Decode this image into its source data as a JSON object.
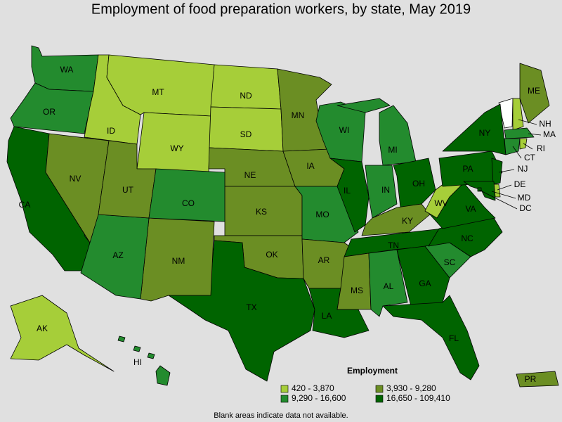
{
  "title": "Employment of food preparation workers, by state, May 2019",
  "legend": {
    "title": "Employment",
    "items": [
      {
        "label": "420 - 3,870",
        "color": "#a6ce39"
      },
      {
        "label": "3,930 - 9,280",
        "color": "#6b8e23"
      },
      {
        "label": "9,290 - 16,600",
        "color": "#238b2e"
      },
      {
        "label": "16,650 - 109,410",
        "color": "#006400"
      }
    ]
  },
  "states": [
    {
      "label": "WA",
      "level": 2
    },
    {
      "label": "OR",
      "level": 2
    },
    {
      "label": "CA",
      "level": 3
    },
    {
      "label": "ID",
      "level": 0
    },
    {
      "label": "MT",
      "level": 0
    },
    {
      "label": "WY",
      "level": 0
    },
    {
      "label": "ND",
      "level": 0
    },
    {
      "label": "SD",
      "level": 0
    },
    {
      "label": "NE",
      "level": 1
    },
    {
      "label": "KS",
      "level": 1
    },
    {
      "label": "OK",
      "level": 1
    },
    {
      "label": "TX",
      "level": 3
    },
    {
      "label": "NM",
      "level": 1
    },
    {
      "label": "AZ",
      "level": 2
    },
    {
      "label": "NV",
      "level": 1
    },
    {
      "label": "UT",
      "level": 1
    },
    {
      "label": "CO",
      "level": 2
    },
    {
      "label": "MN",
      "level": 1
    },
    {
      "label": "IA",
      "level": 1
    },
    {
      "label": "MO",
      "level": 2
    },
    {
      "label": "AR",
      "level": 1
    },
    {
      "label": "LA",
      "level": 3
    },
    {
      "label": "WI",
      "level": 2
    },
    {
      "label": "IL",
      "level": 3
    },
    {
      "label": "MI",
      "level": 2
    },
    {
      "label": "IN",
      "level": 2
    },
    {
      "label": "OH",
      "level": 3
    },
    {
      "label": "KY",
      "level": 1
    },
    {
      "label": "TN",
      "level": 3
    },
    {
      "label": "MS",
      "level": 1
    },
    {
      "label": "AL",
      "level": 2
    },
    {
      "label": "GA",
      "level": 3
    },
    {
      "label": "FL",
      "level": 3
    },
    {
      "label": "SC",
      "level": 2
    },
    {
      "label": "NC",
      "level": 3
    },
    {
      "label": "VA",
      "level": 3
    },
    {
      "label": "WV",
      "level": 0
    },
    {
      "label": "PA",
      "level": 3
    },
    {
      "label": "NY",
      "level": 3
    },
    {
      "label": "ME",
      "level": 1
    },
    {
      "label": "NH",
      "level": 0
    },
    {
      "label": "MA",
      "level": 2
    },
    {
      "label": "CT",
      "level": 2
    },
    {
      "label": "RI",
      "level": 0
    },
    {
      "label": "NJ",
      "level": 3
    },
    {
      "label": "DE",
      "level": 0
    },
    {
      "label": "MD",
      "level": 3
    },
    {
      "label": "DC",
      "level": 3
    },
    {
      "label": "AK",
      "level": 0
    },
    {
      "label": "HI",
      "level": 2
    },
    {
      "label": "PR",
      "level": 1
    }
  ],
  "note": "Blank areas indicate data not available."
}
